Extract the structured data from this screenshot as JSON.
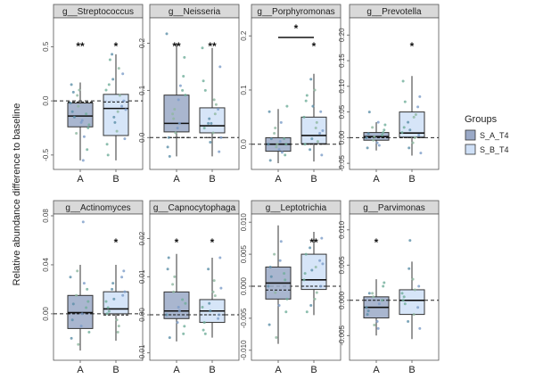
{
  "figure": {
    "ylabel": "Relative abundance difference to baseline",
    "legend": {
      "title": "Groups",
      "entries": [
        {
          "label": "S_A_T4",
          "color": "#9aa9c7"
        },
        {
          "label": "S_B_T4",
          "color": "#cfe0f7"
        }
      ]
    }
  },
  "chart_data": [
    {
      "type": "box",
      "title": "g__Streptococcus",
      "categories": [
        "A",
        "B"
      ],
      "ylim": [
        -0.6,
        0.75
      ],
      "yticks": [
        {
          "v": -0.5,
          "label": "-0.5"
        },
        {
          "v": 0.0,
          "label": "0.0"
        },
        {
          "v": 0.5,
          "label": "0.5"
        }
      ],
      "zero_line": true,
      "boxes": [
        {
          "q1": -0.24,
          "median": -0.14,
          "q3": -0.02,
          "wlo": -0.55,
          "whi": 0.17,
          "mean": -0.01
        },
        {
          "q1": -0.32,
          "median": -0.07,
          "q3": 0.06,
          "wlo": -0.55,
          "whi": 0.43,
          "mean": -0.01
        }
      ],
      "points": [
        [
          -0.02,
          -0.12,
          -0.2,
          -0.3,
          0.15,
          -0.45,
          -0.18,
          0.05,
          -0.1,
          -0.25,
          -0.55,
          -0.05,
          0.08,
          -0.22,
          -0.33,
          0.1,
          -0.15
        ],
        [
          0.1,
          -0.05,
          -0.28,
          0.43,
          -0.4,
          0.25,
          -0.1,
          0.2,
          -0.5,
          0.0,
          0.3,
          -0.15,
          0.15,
          -0.35,
          0.05,
          -0.2,
          0.38,
          -0.08
        ]
      ],
      "sig": [
        "**",
        "*"
      ],
      "bracket": ""
    },
    {
      "type": "box",
      "title": "g__Neisseria",
      "categories": [
        "A",
        "B"
      ],
      "ylim": [
        -0.06,
        0.25
      ],
      "yticks": [
        {
          "v": 0.0,
          "label": "0.0"
        },
        {
          "v": 0.1,
          "label": "0.1"
        },
        {
          "v": 0.2,
          "label": "0.2"
        }
      ],
      "zero_line": true,
      "boxes": [
        {
          "q1": 0.012,
          "median": 0.03,
          "q3": 0.09,
          "wlo": -0.04,
          "whi": 0.2,
          "mean": 0.0
        },
        {
          "q1": 0.01,
          "median": 0.025,
          "q3": 0.063,
          "wlo": -0.04,
          "whi": 0.19,
          "mean": 0.0
        }
      ],
      "points": [
        [
          0.22,
          0.1,
          0.02,
          0.05,
          -0.02,
          0.13,
          0.08,
          0.04,
          0.0,
          0.17,
          0.03,
          0.06,
          -0.04,
          0.09,
          0.11,
          0.01
        ],
        [
          0.19,
          0.06,
          0.01,
          0.03,
          0.12,
          -0.03,
          0.08,
          0.04,
          0.02,
          0.15,
          0.05,
          -0.01,
          0.1,
          0.0,
          0.07,
          0.03
        ]
      ],
      "sig": [
        "**",
        "**"
      ],
      "bracket": ""
    },
    {
      "type": "box",
      "title": "g__Porphyromonas",
      "categories": [
        "A",
        "B"
      ],
      "ylim": [
        -0.04,
        0.23
      ],
      "yticks": [
        {
          "v": 0.0,
          "label": "0.0"
        },
        {
          "v": 0.1,
          "label": "0.1"
        },
        {
          "v": 0.2,
          "label": "0.2"
        }
      ],
      "zero_line": true,
      "boxes": [
        {
          "q1": -0.013,
          "median": 0.0,
          "q3": 0.012,
          "wlo": -0.035,
          "whi": 0.065,
          "mean": 0.0
        },
        {
          "q1": 0.001,
          "median": 0.016,
          "q3": 0.05,
          "wlo": -0.032,
          "whi": 0.13,
          "mean": 0.0
        }
      ],
      "points": [
        [
          0.0,
          0.01,
          -0.01,
          0.02,
          0.06,
          -0.02,
          0.005,
          0.03,
          -0.03,
          0.0,
          0.04,
          -0.005,
          0.01,
          0.07,
          -0.015,
          0.0
        ],
        [
          0.05,
          0.02,
          0.1,
          -0.01,
          0.0,
          0.06,
          0.03,
          0.12,
          0.08,
          -0.02,
          0.04,
          0.01,
          0.09,
          0.025,
          0.005,
          0.07
        ]
      ],
      "sig": [
        "",
        "*"
      ],
      "bracket": "*"
    },
    {
      "type": "box",
      "title": "g__Prevotella",
      "categories": [
        "A",
        "B"
      ],
      "ylim": [
        -0.055,
        0.23
      ],
      "yticks": [
        {
          "v": -0.05,
          "label": "-0.05"
        },
        {
          "v": 0.0,
          "label": "0.00"
        },
        {
          "v": 0.05,
          "label": "0.05"
        },
        {
          "v": 0.1,
          "label": "0.10"
        },
        {
          "v": 0.15,
          "label": "0.15"
        },
        {
          "v": 0.2,
          "label": "0.20"
        }
      ],
      "zero_line": true,
      "boxes": [
        {
          "q1": -0.005,
          "median": 0.002,
          "q3": 0.01,
          "wlo": -0.025,
          "whi": 0.03,
          "mean": 0.0
        },
        {
          "q1": 0.001,
          "median": 0.009,
          "q3": 0.05,
          "wlo": -0.035,
          "whi": 0.12,
          "mean": 0.0
        }
      ],
      "points": [
        [
          0.0,
          0.005,
          -0.01,
          0.02,
          -0.02,
          0.01,
          0.03,
          -0.005,
          0.008,
          0.015,
          -0.015,
          0.002,
          0.05,
          0.025
        ],
        [
          0.01,
          0.06,
          -0.01,
          0.03,
          0.11,
          0.005,
          0.04,
          -0.02,
          0.02,
          0.08,
          0.0,
          0.015,
          0.07,
          -0.03,
          0.045
        ]
      ],
      "sig": [
        "",
        "*"
      ],
      "bracket": ""
    },
    {
      "type": "box",
      "title": "g__Actinomyces",
      "categories": [
        "A",
        "B"
      ],
      "ylim": [
        -0.035,
        0.08
      ],
      "yticks": [
        {
          "v": 0.0,
          "label": "0.00"
        },
        {
          "v": 0.04,
          "label": "0.04"
        },
        {
          "v": 0.08,
          "label": "0.08"
        }
      ],
      "zero_line": true,
      "boxes": [
        {
          "q1": -0.012,
          "median": 0.001,
          "q3": 0.015,
          "wlo": -0.03,
          "whi": 0.04,
          "mean": 0.0
        },
        {
          "q1": 0.0,
          "median": 0.004,
          "q3": 0.018,
          "wlo": -0.022,
          "whi": 0.04,
          "mean": -0.001
        }
      ],
      "points": [
        [
          0.03,
          0.005,
          -0.01,
          0.015,
          -0.02,
          0.02,
          0.0,
          0.035,
          -0.005,
          0.01,
          0.075,
          -0.025,
          0.008,
          -0.015,
          0.025
        ],
        [
          0.01,
          0.03,
          -0.005,
          0.02,
          0.0,
          0.015,
          -0.015,
          0.025,
          0.005,
          0.035,
          -0.01,
          0.012,
          0.002,
          0.018
        ]
      ],
      "sig": [
        "",
        "*"
      ],
      "bracket": ""
    },
    {
      "type": "box",
      "title": "g__Capnocytophaga",
      "categories": [
        "A",
        "B"
      ],
      "ylim": [
        -0.011,
        0.026
      ],
      "yticks": [
        {
          "v": -0.01,
          "label": "-0.01"
        },
        {
          "v": 0.0,
          "label": "0.00"
        },
        {
          "v": 0.01,
          "label": "0.01"
        },
        {
          "v": 0.02,
          "label": "0.02"
        }
      ],
      "zero_line": true,
      "boxes": [
        {
          "q1": -0.001,
          "median": 0.001,
          "q3": 0.006,
          "wlo": -0.007,
          "whi": 0.016,
          "mean": 0.0
        },
        {
          "q1": -0.002,
          "median": 0.001,
          "q3": 0.004,
          "wlo": -0.006,
          "whi": 0.015,
          "mean": 0.0
        }
      ],
      "points": [
        [
          0.0,
          0.004,
          -0.002,
          0.008,
          0.012,
          -0.005,
          0.002,
          0.006,
          0.015,
          -0.003,
          0.001,
          0.01,
          -0.006,
          0.003
        ],
        [
          0.002,
          -0.001,
          0.006,
          0.012,
          -0.004,
          0.0,
          0.009,
          0.003,
          -0.002,
          0.015,
          0.005,
          0.001,
          -0.005,
          0.007
        ]
      ],
      "sig": [
        "*",
        "*"
      ],
      "bracket": ""
    },
    {
      "type": "box",
      "title": "g__Leptotrichia",
      "categories": [
        "A",
        "B"
      ],
      "ylim": [
        -0.011,
        0.011
      ],
      "yticks": [
        {
          "v": -0.01,
          "label": "-0.010"
        },
        {
          "v": -0.005,
          "label": "-0.005"
        },
        {
          "v": 0.0,
          "label": "0.000"
        },
        {
          "v": 0.005,
          "label": "0.005"
        },
        {
          "v": 0.01,
          "label": "0.010"
        }
      ],
      "zero_line": true,
      "boxes": [
        {
          "q1": -0.002,
          "median": 0.0005,
          "q3": 0.003,
          "wlo": -0.009,
          "whi": 0.0095,
          "mean": -0.0006
        },
        {
          "q1": -0.0005,
          "median": 0.001,
          "q3": 0.005,
          "wlo": -0.0045,
          "whi": 0.0085,
          "mean": 0.0
        }
      ],
      "points": [
        [
          0.0,
          0.002,
          -0.003,
          0.005,
          -0.006,
          0.001,
          0.004,
          -0.001,
          0.003,
          -0.004,
          0.007,
          -0.008,
          0.0015,
          -0.002
        ],
        [
          0.001,
          0.004,
          -0.002,
          0.006,
          0.002,
          0.0,
          0.003,
          -0.003,
          0.005,
          0.0075,
          -0.001,
          0.0025,
          -0.004,
          0.0035
        ]
      ],
      "sig": [
        "",
        "**"
      ],
      "bracket": ""
    },
    {
      "type": "box",
      "title": "g__Parvimonas",
      "categories": [
        "A",
        "B"
      ],
      "ylim": [
        -0.008,
        0.012
      ],
      "yticks": [
        {
          "v": -0.005,
          "label": "-0.005"
        },
        {
          "v": 0.0,
          "label": "0.000"
        },
        {
          "v": 0.005,
          "label": "0.005"
        },
        {
          "v": 0.01,
          "label": "0.010"
        }
      ],
      "zero_line": true,
      "boxes": [
        {
          "q1": -0.0025,
          "median": -0.001,
          "q3": 0.0005,
          "wlo": -0.005,
          "whi": 0.003,
          "mean": 0.0
        },
        {
          "q1": -0.002,
          "median": 0.0,
          "q3": 0.0015,
          "wlo": -0.0055,
          "whi": 0.0055,
          "mean": 0.0
        }
      ],
      "points": [
        [
          -0.001,
          0.0,
          -0.003,
          0.001,
          -0.002,
          0.002,
          -0.004,
          0.0005,
          -0.0015,
          0.0025,
          -0.0005,
          -0.0035,
          0.001
        ],
        [
          0.001,
          -0.001,
          0.003,
          -0.003,
          0.0,
          0.002,
          -0.002,
          0.0045,
          0.0005,
          -0.004,
          0.0015,
          0.0085,
          -0.0005
        ]
      ],
      "sig": [
        "*",
        ""
      ],
      "bracket": ""
    }
  ]
}
